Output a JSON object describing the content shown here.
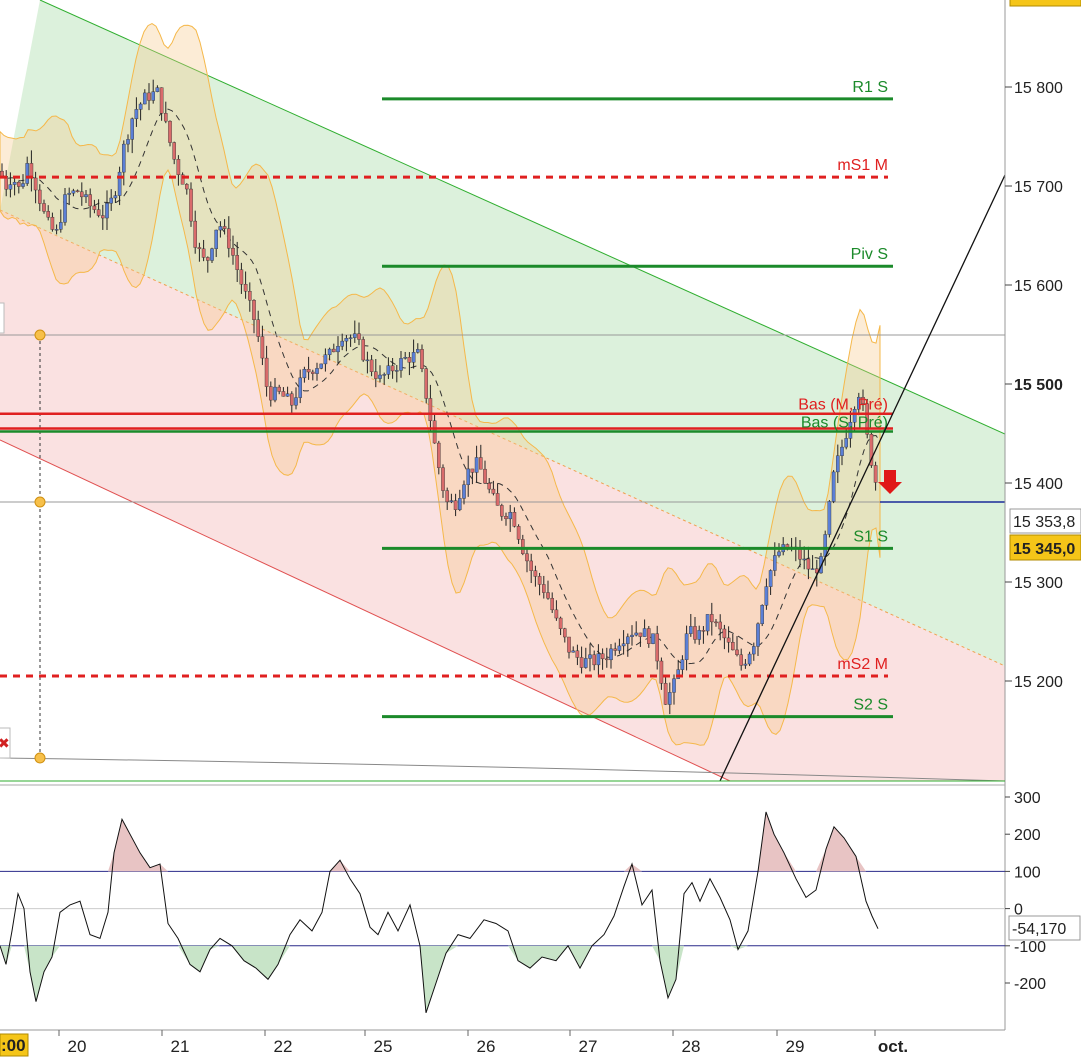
{
  "chart_data": {
    "type": "candlestick",
    "price_axis": {
      "ticks": [
        15200,
        15300,
        15400,
        15500,
        15600,
        15700,
        15800
      ],
      "tick_labels": [
        "15 200",
        "15 300",
        "15 400",
        "15 500",
        "15 600",
        "15 700",
        "15 800"
      ],
      "range": [
        15100,
        15900
      ]
    },
    "x_axis": {
      "labels": [
        "20",
        "21",
        "22",
        "25",
        "26",
        "27",
        "28",
        "29",
        "oct."
      ],
      "partial_left_label": ":00"
    },
    "current_price_label": "15 345,0",
    "secondary_price_label": "15 353,8",
    "levels": [
      {
        "name": "R1 S",
        "value": 15788,
        "color": "#1b8a2a",
        "style": "solid"
      },
      {
        "name": "mS1 M",
        "value": 15709,
        "color": "#e02020",
        "style": "dashed"
      },
      {
        "name": "Piv S",
        "value": 15619,
        "color": "#1b8a2a",
        "style": "solid"
      },
      {
        "name": "Bas (M, Pré)",
        "value": 15470,
        "color": "#e02020",
        "style": "solid"
      },
      {
        "name": "Bas (S, Pré)",
        "value": 15452,
        "color": "#1b8a2a",
        "style": "solid"
      },
      {
        "name": "S1 S",
        "value": 15334,
        "color": "#1b8a2a",
        "style": "solid"
      },
      {
        "name": "mS2 M",
        "value": 15205,
        "color": "#e02020",
        "style": "dashed"
      },
      {
        "name": "S2 S",
        "value": 15164,
        "color": "#1b8a2a",
        "style": "solid"
      }
    ],
    "extra_red_line": 15455,
    "horizontal_grey_lines": [
      15550,
      15380
    ],
    "blue_line_value": 15380,
    "close_points": [
      [
        0,
        15715
      ],
      [
        6,
        15700
      ],
      [
        12,
        15710
      ],
      [
        20,
        15695
      ],
      [
        28,
        15725
      ],
      [
        36,
        15700
      ],
      [
        46,
        15665
      ],
      [
        56,
        15650
      ],
      [
        66,
        15690
      ],
      [
        78,
        15695
      ],
      [
        90,
        15680
      ],
      [
        104,
        15670
      ],
      [
        114,
        15690
      ],
      [
        124,
        15740
      ],
      [
        134,
        15775
      ],
      [
        146,
        15790
      ],
      [
        158,
        15795
      ],
      [
        166,
        15760
      ],
      [
        176,
        15720
      ],
      [
        186,
        15700
      ],
      [
        196,
        15640
      ],
      [
        206,
        15620
      ],
      [
        218,
        15665
      ],
      [
        230,
        15640
      ],
      [
        242,
        15600
      ],
      [
        256,
        15560
      ],
      [
        268,
        15490
      ],
      [
        280,
        15490
      ],
      [
        292,
        15480
      ],
      [
        304,
        15510
      ],
      [
        318,
        15520
      ],
      [
        330,
        15530
      ],
      [
        342,
        15550
      ],
      [
        356,
        15545
      ],
      [
        368,
        15520
      ],
      [
        380,
        15505
      ],
      [
        392,
        15515
      ],
      [
        404,
        15525
      ],
      [
        418,
        15530
      ],
      [
        428,
        15480
      ],
      [
        436,
        15430
      ],
      [
        446,
        15380
      ],
      [
        456,
        15380
      ],
      [
        466,
        15410
      ],
      [
        478,
        15420
      ],
      [
        490,
        15390
      ],
      [
        500,
        15370
      ],
      [
        512,
        15370
      ],
      [
        524,
        15330
      ],
      [
        534,
        15305
      ],
      [
        546,
        15290
      ],
      [
        558,
        15255
      ],
      [
        570,
        15230
      ],
      [
        582,
        15220
      ],
      [
        594,
        15220
      ],
      [
        606,
        15225
      ],
      [
        618,
        15240
      ],
      [
        630,
        15250
      ],
      [
        642,
        15250
      ],
      [
        654,
        15240
      ],
      [
        666,
        15180
      ],
      [
        676,
        15200
      ],
      [
        688,
        15250
      ],
      [
        698,
        15245
      ],
      [
        710,
        15265
      ],
      [
        720,
        15250
      ],
      [
        732,
        15230
      ],
      [
        742,
        15215
      ],
      [
        754,
        15240
      ],
      [
        766,
        15300
      ],
      [
        778,
        15330
      ],
      [
        790,
        15335
      ],
      [
        800,
        15325
      ],
      [
        812,
        15310
      ],
      [
        822,
        15320
      ],
      [
        834,
        15410
      ],
      [
        846,
        15450
      ],
      [
        854,
        15480
      ],
      [
        860,
        15495
      ],
      [
        868,
        15440
      ],
      [
        876,
        15400
      ],
      [
        880,
        15350
      ]
    ],
    "cci": {
      "ticks": [
        300,
        200,
        100,
        0,
        -100,
        -200
      ],
      "tick_labels": [
        "300",
        "200",
        "100",
        "0",
        "-100",
        "-200"
      ],
      "range": [
        -310,
        330
      ],
      "current_label": "-54,170",
      "points": [
        [
          0,
          -100
        ],
        [
          6,
          -150
        ],
        [
          12,
          -60
        ],
        [
          18,
          40
        ],
        [
          24,
          0
        ],
        [
          30,
          -170
        ],
        [
          36,
          -250
        ],
        [
          44,
          -170
        ],
        [
          52,
          -130
        ],
        [
          60,
          -10
        ],
        [
          70,
          10
        ],
        [
          80,
          20
        ],
        [
          90,
          -70
        ],
        [
          100,
          -80
        ],
        [
          108,
          -10
        ],
        [
          114,
          150
        ],
        [
          122,
          240
        ],
        [
          130,
          200
        ],
        [
          140,
          150
        ],
        [
          150,
          110
        ],
        [
          160,
          120
        ],
        [
          168,
          -40
        ],
        [
          178,
          -80
        ],
        [
          190,
          -150
        ],
        [
          200,
          -170
        ],
        [
          210,
          -110
        ],
        [
          220,
          -80
        ],
        [
          232,
          -100
        ],
        [
          244,
          -140
        ],
        [
          256,
          -160
        ],
        [
          268,
          -190
        ],
        [
          278,
          -150
        ],
        [
          290,
          -70
        ],
        [
          300,
          -30
        ],
        [
          312,
          -60
        ],
        [
          322,
          -10
        ],
        [
          330,
          100
        ],
        [
          340,
          130
        ],
        [
          350,
          80
        ],
        [
          360,
          40
        ],
        [
          370,
          -50
        ],
        [
          378,
          -70
        ],
        [
          388,
          -10
        ],
        [
          398,
          -60
        ],
        [
          410,
          10
        ],
        [
          420,
          -100
        ],
        [
          426,
          -280
        ],
        [
          436,
          -200
        ],
        [
          446,
          -120
        ],
        [
          458,
          -70
        ],
        [
          470,
          -80
        ],
        [
          484,
          -30
        ],
        [
          496,
          -40
        ],
        [
          508,
          -60
        ],
        [
          518,
          -140
        ],
        [
          530,
          -160
        ],
        [
          542,
          -130
        ],
        [
          556,
          -140
        ],
        [
          568,
          -100
        ],
        [
          580,
          -160
        ],
        [
          592,
          -100
        ],
        [
          604,
          -70
        ],
        [
          614,
          -20
        ],
        [
          624,
          60
        ],
        [
          632,
          120
        ],
        [
          642,
          10
        ],
        [
          652,
          50
        ],
        [
          660,
          -140
        ],
        [
          668,
          -240
        ],
        [
          676,
          -190
        ],
        [
          684,
          40
        ],
        [
          692,
          70
        ],
        [
          700,
          20
        ],
        [
          710,
          80
        ],
        [
          720,
          30
        ],
        [
          730,
          -30
        ],
        [
          738,
          -110
        ],
        [
          748,
          -60
        ],
        [
          758,
          100
        ],
        [
          766,
          260
        ],
        [
          774,
          200
        ],
        [
          784,
          150
        ],
        [
          796,
          80
        ],
        [
          806,
          30
        ],
        [
          816,
          50
        ],
        [
          826,
          160
        ],
        [
          834,
          220
        ],
        [
          844,
          190
        ],
        [
          856,
          140
        ],
        [
          866,
          20
        ],
        [
          872,
          -20
        ],
        [
          878,
          -54
        ]
      ]
    }
  }
}
